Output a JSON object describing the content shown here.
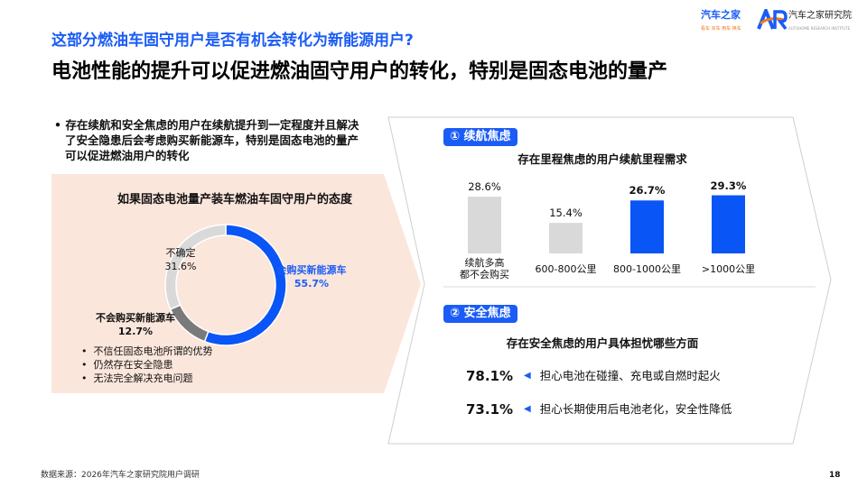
{
  "header": {
    "question": "这部分燃油车固守用户是否有机会转化为新能源用户?",
    "headline": "电池性能的提升可以促进燃油固守用户的转化，特别是固态电池的量产"
  },
  "logos": {
    "autohome": "汽车之家",
    "autohome_slogan": "看车 买车 用车 换车",
    "institute": "汽车之家研究院",
    "institute_en": "AUTOHOME RESEARCH INSTITUTE"
  },
  "left": {
    "bullet": "存在续航和安全焦虑的用户在续航提升到一定程度并且解决了安全隐患后会考虑购买新能源车，特别是固态电池的量产可以促进燃油用户的转化",
    "reasons": [
      "不信任固态电池所谓的优势",
      "仍然存在安全隐患",
      "无法完全解决充电问题"
    ]
  },
  "chart_data": [
    {
      "type": "pie",
      "title": "如果固态电池量产装车燃油车固守用户的态度",
      "donut": true,
      "slices": [
        {
          "name": "会购买新能源车",
          "value": 55.7,
          "label": "55.7%",
          "color": "#0a55f5"
        },
        {
          "name": "不会购买新能源车",
          "value": 12.7,
          "label": "12.7%",
          "color": "#7a7a7a"
        },
        {
          "name": "不确定",
          "value": 31.6,
          "label": "31.6%",
          "color": "#d9d9d9"
        }
      ]
    },
    {
      "type": "bar",
      "title": "存在里程焦虑的用户续航里程需求",
      "categories": [
        "续航多高都不会购买",
        "600-800公里",
        "800-1000公里",
        ">1000公里"
      ],
      "values": [
        28.6,
        15.4,
        26.7,
        29.3
      ],
      "labels": [
        "28.6%",
        "15.4%",
        "26.7%",
        "29.3%"
      ],
      "colors": [
        "#d9d9d9",
        "#d9d9d9",
        "#0a55f5",
        "#0a55f5"
      ]
    }
  ],
  "right": {
    "badge1": "① 续航焦虑",
    "badge2": "② 安全焦虑",
    "safety_title": "存在安全焦虑的用户具体担忧哪些方面",
    "concerns": [
      {
        "pct": "78.1%",
        "text": "担心电池在碰撞、充电或自燃时起火"
      },
      {
        "pct": "73.1%",
        "text": "担心长期使用后电池老化，安全性降低"
      }
    ]
  },
  "footer": {
    "source": "数据来源：2026年汽车之家研究院用户调研",
    "page": "18"
  },
  "colors": {
    "accent": "#1a5cf5",
    "peach": "#fbe6dc"
  }
}
